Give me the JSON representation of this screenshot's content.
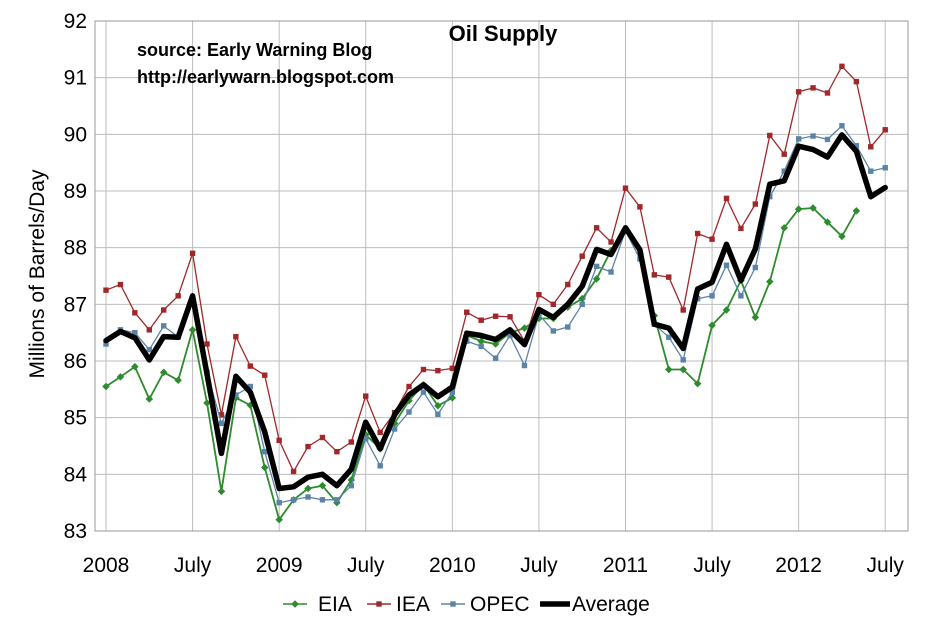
{
  "chart_data": {
    "type": "line",
    "title": "Oil Supply",
    "annotations": [
      "source: Early Warning Blog",
      "http://earlywarn.blogspot.com"
    ],
    "xlabel": "",
    "ylabel": "Millions of Barrels/Day",
    "ylim": [
      83,
      92
    ],
    "yticks": [
      83,
      84,
      85,
      86,
      87,
      88,
      89,
      90,
      91,
      92
    ],
    "xlim": [
      0,
      55
    ],
    "xticks": [
      {
        "pos": 0,
        "label": "2008"
      },
      {
        "pos": 6,
        "label": "July"
      },
      {
        "pos": 12,
        "label": "2009"
      },
      {
        "pos": 18,
        "label": "July"
      },
      {
        "pos": 24,
        "label": "2010"
      },
      {
        "pos": 30,
        "label": "July"
      },
      {
        "pos": 36,
        "label": "2011"
      },
      {
        "pos": 42,
        "label": "July"
      },
      {
        "pos": 48,
        "label": "2012"
      },
      {
        "pos": 54,
        "label": "July"
      }
    ],
    "grid": true,
    "legend": "bottom",
    "series": [
      {
        "name": "EIA",
        "color": "#2e8b2e",
        "marker": "diamond",
        "values": [
          85.55,
          85.72,
          85.9,
          85.33,
          85.8,
          85.66,
          86.55,
          85.26,
          83.7,
          85.35,
          85.22,
          84.12,
          83.2,
          83.55,
          83.75,
          83.8,
          83.5,
          83.9,
          84.7,
          84.45,
          84.9,
          85.3,
          85.58,
          85.21,
          85.35,
          86.45,
          86.35,
          86.3,
          86.5,
          86.58,
          86.75,
          86.75,
          86.95,
          87.1,
          87.45,
          87.95,
          88.3,
          87.9,
          86.8,
          85.85,
          85.85,
          85.6,
          86.63,
          86.9,
          87.42,
          86.77,
          87.4,
          88.35,
          88.68,
          88.7,
          88.45,
          88.2,
          88.65,
          null,
          null,
          null
        ]
      },
      {
        "name": "IEA",
        "color": "#a0282a",
        "marker": "square",
        "values": [
          87.25,
          87.35,
          86.85,
          86.55,
          86.9,
          87.15,
          87.9,
          86.3,
          85.05,
          86.43,
          85.91,
          85.75,
          84.6,
          84.05,
          84.49,
          84.65,
          84.4,
          84.57,
          85.38,
          84.74,
          85.09,
          85.55,
          85.85,
          85.83,
          85.87,
          86.86,
          86.72,
          86.79,
          86.78,
          86.35,
          87.17,
          87.0,
          87.35,
          87.85,
          88.35,
          88.1,
          89.05,
          88.72,
          87.52,
          87.48,
          86.9,
          88.25,
          88.15,
          88.87,
          88.34,
          88.77,
          89.98,
          89.65,
          90.75,
          90.82,
          90.73,
          91.2,
          90.93,
          89.78,
          90.08,
          null
        ]
      },
      {
        "name": "OPEC",
        "color": "#5b83a8",
        "marker": "square",
        "values": [
          86.3,
          86.55,
          86.5,
          86.2,
          86.62,
          86.42,
          87.05,
          85.8,
          84.9,
          85.4,
          85.55,
          84.4,
          83.5,
          83.55,
          83.6,
          83.55,
          83.55,
          83.8,
          84.63,
          84.15,
          84.8,
          85.1,
          85.45,
          85.06,
          85.45,
          86.35,
          86.26,
          86.05,
          86.45,
          85.92,
          86.82,
          86.53,
          86.6,
          87.0,
          87.67,
          87.57,
          88.3,
          87.8,
          86.65,
          86.42,
          86.02,
          87.1,
          87.15,
          87.69,
          87.15,
          87.65,
          88.9,
          89.35,
          89.92,
          89.97,
          89.91,
          90.15,
          89.8,
          89.35,
          89.41,
          null
        ]
      },
      {
        "name": "Average",
        "color": "#000000",
        "marker": "none",
        "values": [
          86.36,
          86.52,
          86.41,
          86.02,
          86.43,
          86.42,
          87.15,
          85.77,
          84.37,
          85.73,
          85.45,
          84.75,
          83.75,
          83.78,
          83.95,
          84.0,
          83.8,
          84.09,
          84.92,
          84.45,
          85.05,
          85.4,
          85.58,
          85.37,
          85.54,
          86.49,
          86.45,
          86.38,
          86.55,
          86.29,
          86.91,
          86.77,
          87.0,
          87.32,
          87.97,
          87.88,
          88.35,
          87.96,
          86.65,
          86.58,
          86.22,
          87.27,
          87.39,
          88.06,
          87.42,
          87.98,
          89.12,
          89.18,
          89.79,
          89.73,
          89.6,
          89.99,
          89.7,
          88.9,
          89.06,
          null
        ]
      }
    ]
  }
}
